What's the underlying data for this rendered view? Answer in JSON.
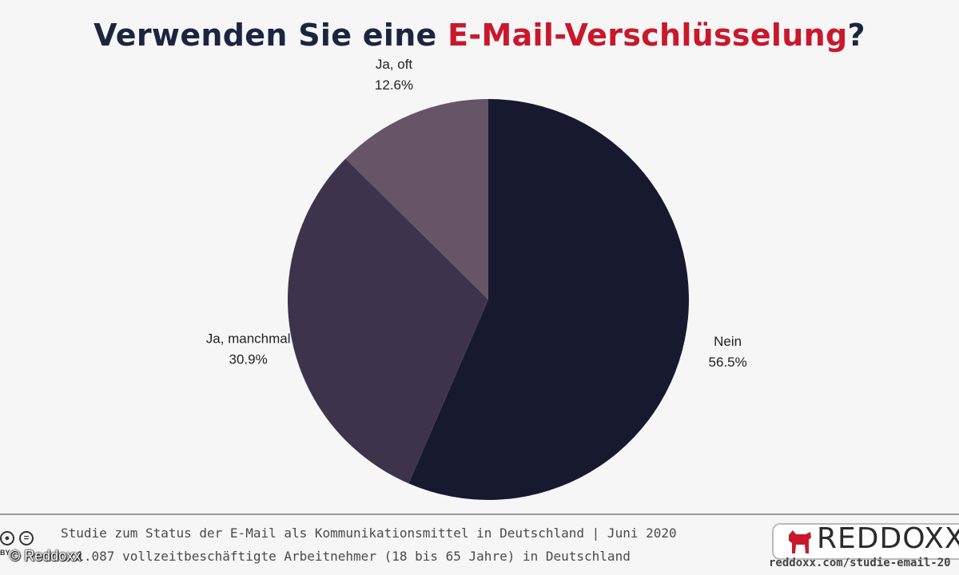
{
  "header": {
    "title_part1": "Verwenden Sie eine ",
    "title_highlight": "E-Mail-Verschlüsselung",
    "title_part2": "?"
  },
  "colors": {
    "title_dark": "#1c2540",
    "title_accent": "#c9182c",
    "background": "#f6f6f6"
  },
  "chart_data": {
    "type": "pie",
    "slices": [
      {
        "label": "Nein",
        "value_text": "56.5%",
        "value": 56.5,
        "color": "#171a2e"
      },
      {
        "label": "Ja, manchmal",
        "value_text": "30.9%",
        "value": 30.9,
        "color": "#3d344b"
      },
      {
        "label": "Ja, oft",
        "value_text": "12.6%",
        "value": 12.6,
        "color": "#665566"
      }
    ],
    "start_angle": "12 o'clock",
    "direction": "clockwise",
    "legend": "none"
  },
  "footer": {
    "line1": "Studie zum Status der E-Mail als Kommunikationsmittel in Deutschland | Juni 2020",
    "line2_visible": ": 1.087 vollzeitbeschäftigte Arbeitnehmer (18 bis 65 Jahre) in Deutschland",
    "copyright": "© Reddoxx",
    "license_badge": "BY",
    "brand_name": "REDDOXX",
    "brand_url": "reddoxx.com/studie-email-20"
  }
}
